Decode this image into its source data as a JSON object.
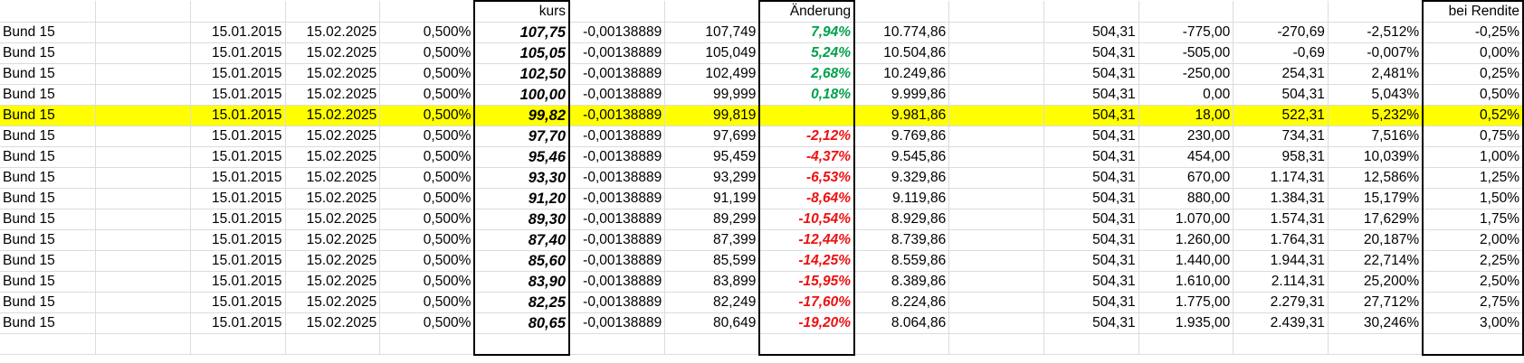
{
  "headers": {
    "kurs": "kurs",
    "aenderung": "Änderung",
    "rendite": "bei Rendite"
  },
  "rows": [
    {
      "name": "Bund 15",
      "d1": "15.01.2015",
      "d2": "15.02.2025",
      "cpn": "0,500%",
      "kurs": "107,75",
      "f": "-0,00138889",
      "clean": "107,749",
      "chg": "7,94%",
      "chg_sign": "pos",
      "val": "10.774,86",
      "base": "504,31",
      "diff": "-775,00",
      "gain": "-270,69",
      "pct": "-2,512%",
      "rend": "-0,25%"
    },
    {
      "name": "Bund 15",
      "d1": "15.01.2015",
      "d2": "15.02.2025",
      "cpn": "0,500%",
      "kurs": "105,05",
      "f": "-0,00138889",
      "clean": "105,049",
      "chg": "5,24%",
      "chg_sign": "pos",
      "val": "10.504,86",
      "base": "504,31",
      "diff": "-505,00",
      "gain": "-0,69",
      "pct": "-0,007%",
      "rend": "0,00%"
    },
    {
      "name": "Bund 15",
      "d1": "15.01.2015",
      "d2": "15.02.2025",
      "cpn": "0,500%",
      "kurs": "102,50",
      "f": "-0,00138889",
      "clean": "102,499",
      "chg": "2,68%",
      "chg_sign": "pos",
      "val": "10.249,86",
      "base": "504,31",
      "diff": "-250,00",
      "gain": "254,31",
      "pct": "2,481%",
      "rend": "0,25%"
    },
    {
      "name": "Bund 15",
      "d1": "15.01.2015",
      "d2": "15.02.2025",
      "cpn": "0,500%",
      "kurs": "100,00",
      "f": "-0,00138889",
      "clean": "99,999",
      "chg": "0,18%",
      "chg_sign": "pos",
      "val": "9.999,86",
      "base": "504,31",
      "diff": "0,00",
      "gain": "504,31",
      "pct": "5,043%",
      "rend": "0,50%"
    },
    {
      "name": "Bund 15",
      "d1": "15.01.2015",
      "d2": "15.02.2025",
      "cpn": "0,500%",
      "kurs": "99,82",
      "f": "-0,00138889",
      "clean": "99,819",
      "chg": "",
      "chg_sign": "none",
      "val": "9.981,86",
      "base": "504,31",
      "diff": "18,00",
      "gain": "522,31",
      "pct": "5,232%",
      "rend": "0,52%",
      "highlight": true
    },
    {
      "name": "Bund 15",
      "d1": "15.01.2015",
      "d2": "15.02.2025",
      "cpn": "0,500%",
      "kurs": "97,70",
      "f": "-0,00138889",
      "clean": "97,699",
      "chg": "-2,12%",
      "chg_sign": "neg",
      "val": "9.769,86",
      "base": "504,31",
      "diff": "230,00",
      "gain": "734,31",
      "pct": "7,516%",
      "rend": "0,75%"
    },
    {
      "name": "Bund 15",
      "d1": "15.01.2015",
      "d2": "15.02.2025",
      "cpn": "0,500%",
      "kurs": "95,46",
      "f": "-0,00138889",
      "clean": "95,459",
      "chg": "-4,37%",
      "chg_sign": "neg",
      "val": "9.545,86",
      "base": "504,31",
      "diff": "454,00",
      "gain": "958,31",
      "pct": "10,039%",
      "rend": "1,00%"
    },
    {
      "name": "Bund 15",
      "d1": "15.01.2015",
      "d2": "15.02.2025",
      "cpn": "0,500%",
      "kurs": "93,30",
      "f": "-0,00138889",
      "clean": "93,299",
      "chg": "-6,53%",
      "chg_sign": "neg",
      "val": "9.329,86",
      "base": "504,31",
      "diff": "670,00",
      "gain": "1.174,31",
      "pct": "12,586%",
      "rend": "1,25%"
    },
    {
      "name": "Bund 15",
      "d1": "15.01.2015",
      "d2": "15.02.2025",
      "cpn": "0,500%",
      "kurs": "91,20",
      "f": "-0,00138889",
      "clean": "91,199",
      "chg": "-8,64%",
      "chg_sign": "neg",
      "val": "9.119,86",
      "base": "504,31",
      "diff": "880,00",
      "gain": "1.384,31",
      "pct": "15,179%",
      "rend": "1,50%"
    },
    {
      "name": "Bund 15",
      "d1": "15.01.2015",
      "d2": "15.02.2025",
      "cpn": "0,500%",
      "kurs": "89,30",
      "f": "-0,00138889",
      "clean": "89,299",
      "chg": "-10,54%",
      "chg_sign": "neg",
      "val": "8.929,86",
      "base": "504,31",
      "diff": "1.070,00",
      "gain": "1.574,31",
      "pct": "17,629%",
      "rend": "1,75%"
    },
    {
      "name": "Bund 15",
      "d1": "15.01.2015",
      "d2": "15.02.2025",
      "cpn": "0,500%",
      "kurs": "87,40",
      "f": "-0,00138889",
      "clean": "87,399",
      "chg": "-12,44%",
      "chg_sign": "neg",
      "val": "8.739,86",
      "base": "504,31",
      "diff": "1.260,00",
      "gain": "1.764,31",
      "pct": "20,187%",
      "rend": "2,00%"
    },
    {
      "name": "Bund 15",
      "d1": "15.01.2015",
      "d2": "15.02.2025",
      "cpn": "0,500%",
      "kurs": "85,60",
      "f": "-0,00138889",
      "clean": "85,599",
      "chg": "-14,25%",
      "chg_sign": "neg",
      "val": "8.559,86",
      "base": "504,31",
      "diff": "1.440,00",
      "gain": "1.944,31",
      "pct": "22,714%",
      "rend": "2,25%"
    },
    {
      "name": "Bund 15",
      "d1": "15.01.2015",
      "d2": "15.02.2025",
      "cpn": "0,500%",
      "kurs": "83,90",
      "f": "-0,00138889",
      "clean": "83,899",
      "chg": "-15,95%",
      "chg_sign": "neg",
      "val": "8.389,86",
      "base": "504,31",
      "diff": "1.610,00",
      "gain": "2.114,31",
      "pct": "25,200%",
      "rend": "2,50%"
    },
    {
      "name": "Bund 15",
      "d1": "15.01.2015",
      "d2": "15.02.2025",
      "cpn": "0,500%",
      "kurs": "82,25",
      "f": "-0,00138889",
      "clean": "82,249",
      "chg": "-17,60%",
      "chg_sign": "neg",
      "val": "8.224,86",
      "base": "504,31",
      "diff": "1.775,00",
      "gain": "2.279,31",
      "pct": "27,712%",
      "rend": "2,75%"
    },
    {
      "name": "Bund 15",
      "d1": "15.01.2015",
      "d2": "15.02.2025",
      "cpn": "0,500%",
      "kurs": "80,65",
      "f": "-0,00138889",
      "clean": "80,649",
      "chg": "-19,20%",
      "chg_sign": "neg",
      "val": "8.064,86",
      "base": "504,31",
      "diff": "1.935,00",
      "gain": "2.439,31",
      "pct": "30,246%",
      "rend": "3,00%"
    }
  ],
  "colors": {
    "highlight": "#ffff00",
    "positive": "#00a14b",
    "negative": "#ee1111",
    "gridline": "#dadcdf"
  }
}
